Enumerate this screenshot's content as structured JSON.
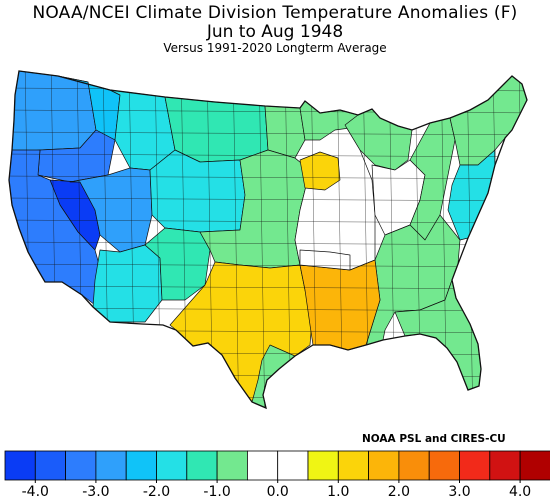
{
  "title": {
    "line1": "NOAA/NCEI Climate Division Temperature Anomalies (F)",
    "line2": "Jun to Aug 1948",
    "line3": "Versus 1991-2020 Longterm Average"
  },
  "credit": "NOAA PSL and CIRES-CU",
  "colors": {
    "scale": [
      "#0a3cf5",
      "#1a5cfa",
      "#2d7dfd",
      "#2fa0fb",
      "#10c3f8",
      "#24e0e6",
      "#30e7b3",
      "#73e88f",
      "#ffffff",
      "#ffffff",
      "#f0f514",
      "#fbd40a",
      "#fcb509",
      "#f98e0a",
      "#f76a0c",
      "#f22a1a",
      "#d11212",
      "#b00000"
    ],
    "ocean": "#ffffff",
    "border": "#111111"
  },
  "legend": {
    "tick_labels": [
      "-4.0",
      "-3.0",
      "-2.0",
      "-1.0",
      "0.0",
      "1.0",
      "2.0",
      "3.0",
      "4.0"
    ],
    "range": [
      -4.0,
      4.5
    ],
    "bin_width": 0.5
  },
  "regions": [
    {
      "name": "pacific-northwest-coast",
      "anomaly": -2.8
    },
    {
      "name": "washington-inland",
      "anomaly": -2.3
    },
    {
      "name": "idaho-montana-west",
      "anomaly": -1.7
    },
    {
      "name": "montana-east-dakotas-west",
      "anomaly": -1.1
    },
    {
      "name": "dakotas-east",
      "anomaly": -0.8
    },
    {
      "name": "oregon-interior",
      "anomaly": -3.2
    },
    {
      "name": "nevada-west",
      "anomaly": -4.2
    },
    {
      "name": "california-coast",
      "anomaly": -3.4
    },
    {
      "name": "great-basin",
      "anomaly": -2.7
    },
    {
      "name": "utah-colorado-wyoming",
      "anomaly": -1.8
    },
    {
      "name": "arizona-south",
      "anomaly": -2.0
    },
    {
      "name": "new-mexico-southwest",
      "anomaly": -1.4
    },
    {
      "name": "great-plains",
      "anomaly": -0.8
    },
    {
      "name": "iowa-illinois-core",
      "anomaly": 0.2
    },
    {
      "name": "wisconsin-iowa-hotspot",
      "anomaly": 1.3
    },
    {
      "name": "minnesota",
      "anomaly": -0.7
    },
    {
      "name": "michigan-great-lakes",
      "anomaly": -0.8
    },
    {
      "name": "ohio-valley",
      "anomaly": -0.2
    },
    {
      "name": "appalachians",
      "anomaly": -0.7
    },
    {
      "name": "southeast",
      "anomaly": -0.7
    },
    {
      "name": "florida",
      "anomaly": -0.8
    },
    {
      "name": "northeast",
      "anomaly": -0.8
    },
    {
      "name": "mid-atlantic-coast",
      "anomaly": -1.8
    },
    {
      "name": "texas",
      "anomaly": 1.2
    },
    {
      "name": "lower-mississippi-valley",
      "anomaly": 1.8
    },
    {
      "name": "oklahoma-arkansas-north",
      "anomaly": 0.1
    },
    {
      "name": "texas-gulf-coast",
      "anomaly": -0.8
    }
  ]
}
